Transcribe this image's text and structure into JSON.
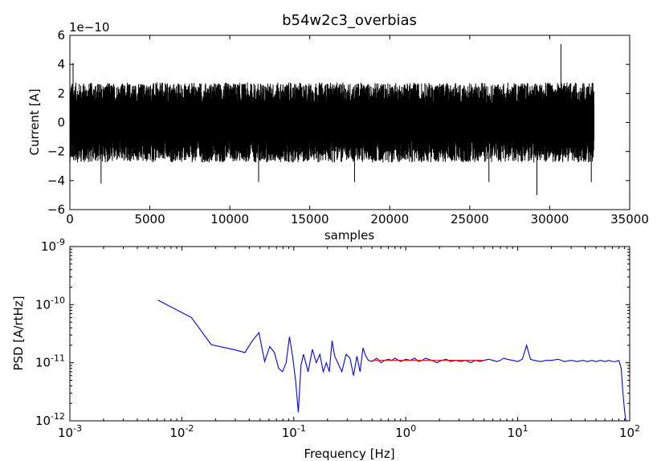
{
  "chart_data": [
    {
      "type": "line",
      "title": "b54w2c3_overbias",
      "xlabel": "samples",
      "ylabel": "Current [A]",
      "y_offset_label": "1e−10",
      "xlim": [
        0,
        35000
      ],
      "ylim": [
        -6,
        6
      ],
      "x_ticks": [
        "0",
        "5000",
        "10000",
        "15000",
        "20000",
        "25000",
        "30000",
        "35000"
      ],
      "y_ticks": [
        "−6",
        "−4",
        "−2",
        "0",
        "2",
        "4",
        "6"
      ],
      "grid": false,
      "series": [
        {
          "color": "#000000",
          "n_samples": 32768,
          "typical_band": [
            -2.2,
            2.2
          ],
          "extremes": [
            {
              "x": 30700,
              "y": 5.4
            },
            {
              "x": 29200,
              "y": -5.0
            },
            {
              "x": 200,
              "y": 4.1
            },
            {
              "x": 1950,
              "y": -4.2
            },
            {
              "x": 11800,
              "y": -4.1
            },
            {
              "x": 17800,
              "y": -4.1
            },
            {
              "x": 26200,
              "y": -4.1
            },
            {
              "x": 32600,
              "y": -4.1
            }
          ]
        }
      ]
    },
    {
      "type": "line",
      "xscale": "log",
      "yscale": "log",
      "xlabel": "Frequency [Hz]",
      "ylabel": "PSD [A/rtHz]",
      "xlim": [
        0.001,
        100
      ],
      "ylim": [
        1e-12,
        1e-09
      ],
      "x_ticks": [
        {
          "base": "10",
          "exp": "-3"
        },
        {
          "base": "10",
          "exp": "-2"
        },
        {
          "base": "10",
          "exp": "-1"
        },
        {
          "base": "10",
          "exp": "0"
        },
        {
          "base": "10",
          "exp": "1"
        },
        {
          "base": "10",
          "exp": "2"
        }
      ],
      "y_ticks": [
        {
          "base": "10",
          "exp": "-12"
        },
        {
          "base": "10",
          "exp": "-11"
        },
        {
          "base": "10",
          "exp": "-10"
        },
        {
          "base": "10",
          "exp": "-9"
        }
      ],
      "grid": false,
      "series": [
        {
          "color": "#0000ff",
          "x": [
            0.0061,
            0.0122,
            0.0183,
            0.0305,
            0.0366,
            0.0427,
            0.0488,
            0.0549,
            0.061,
            0.0671,
            0.0732,
            0.0793,
            0.0854,
            0.0915,
            0.0976,
            0.1037,
            0.1098,
            0.1159,
            0.122,
            0.1343,
            0.1465,
            0.1587,
            0.171,
            0.1831,
            0.1953,
            0.2075,
            0.2197,
            0.2319,
            0.2441,
            0.2686,
            0.293,
            0.3174,
            0.3418,
            0.3662,
            0.3906,
            0.415,
            0.4395,
            0.4639,
            0.5,
            0.55,
            0.6,
            0.65,
            0.7,
            0.75,
            0.8,
            0.9,
            1.0,
            1.1,
            1.2,
            1.3,
            1.4,
            1.5,
            1.7,
            1.9,
            2.1,
            2.3,
            2.5,
            2.8,
            3.1,
            3.4,
            3.8,
            4.2,
            4.6,
            5.0,
            5.5,
            6.0,
            6.5,
            7.0,
            7.5,
            8.0,
            9.0,
            10.0,
            11.0,
            12.0,
            13.0,
            14.0,
            16.0,
            18.0,
            20.0,
            23.0,
            26.0,
            30.0,
            34.0,
            38.0,
            42.0,
            46.0,
            50.0,
            55.0,
            60.0,
            65.0,
            70.0,
            75.0,
            80.0,
            84.0,
            87.0,
            90.0,
            92.0,
            94.0
          ],
          "y": [
            1.2e-10,
            6e-11,
            2.05e-11,
            1.65e-11,
            1.5e-11,
            2.4e-11,
            3.3e-11,
            1.05e-11,
            1.9e-11,
            1.5e-11,
            8e-12,
            7e-12,
            1e-11,
            2.8e-11,
            1.3e-11,
            5e-12,
            1.4e-12,
            9e-12,
            1.4e-11,
            7e-12,
            1.7e-11,
            1e-11,
            1.4e-11,
            7e-12,
            1e-11,
            7e-12,
            2.4e-11,
            1.3e-11,
            1.05e-11,
            7e-12,
            1.4e-11,
            1.2e-11,
            6e-12,
            1.3e-11,
            7e-12,
            1.8e-11,
            1.3e-11,
            1.1e-11,
            1.05e-11,
            1.2e-11,
            1e-11,
            1.1e-11,
            1.15e-11,
            1.1e-11,
            1.2e-11,
            1.05e-11,
            1.15e-11,
            1.1e-11,
            1.2e-11,
            1.05e-11,
            1.1e-11,
            1.2e-11,
            1.1e-11,
            1e-11,
            1.1e-11,
            1.15e-11,
            1.05e-11,
            1.1e-11,
            1.05e-11,
            1.1e-11,
            1e-11,
            1.1e-11,
            1.05e-11,
            1.1e-11,
            1.15e-11,
            1.1e-11,
            1.05e-11,
            1.1e-11,
            1.2e-11,
            1.15e-11,
            1.1e-11,
            1.05e-11,
            1.15e-11,
            2e-11,
            1.15e-11,
            1.1e-11,
            1.05e-11,
            1.1e-11,
            1.1e-11,
            1.15e-11,
            1.05e-11,
            1.1e-11,
            1.05e-11,
            1.1e-11,
            1.05e-11,
            1.1e-11,
            1.05e-11,
            1.1e-11,
            1.05e-11,
            1.1e-11,
            1.05e-11,
            1.05e-11,
            1.1e-11,
            8e-12,
            3e-12,
            1.5e-12,
            1.05e-12,
            1e-12
          ]
        },
        {
          "color": "#ff0000",
          "x": [
            0.5,
            5.0
          ],
          "y": [
            1.1e-11,
            1.1e-11
          ]
        }
      ]
    }
  ]
}
